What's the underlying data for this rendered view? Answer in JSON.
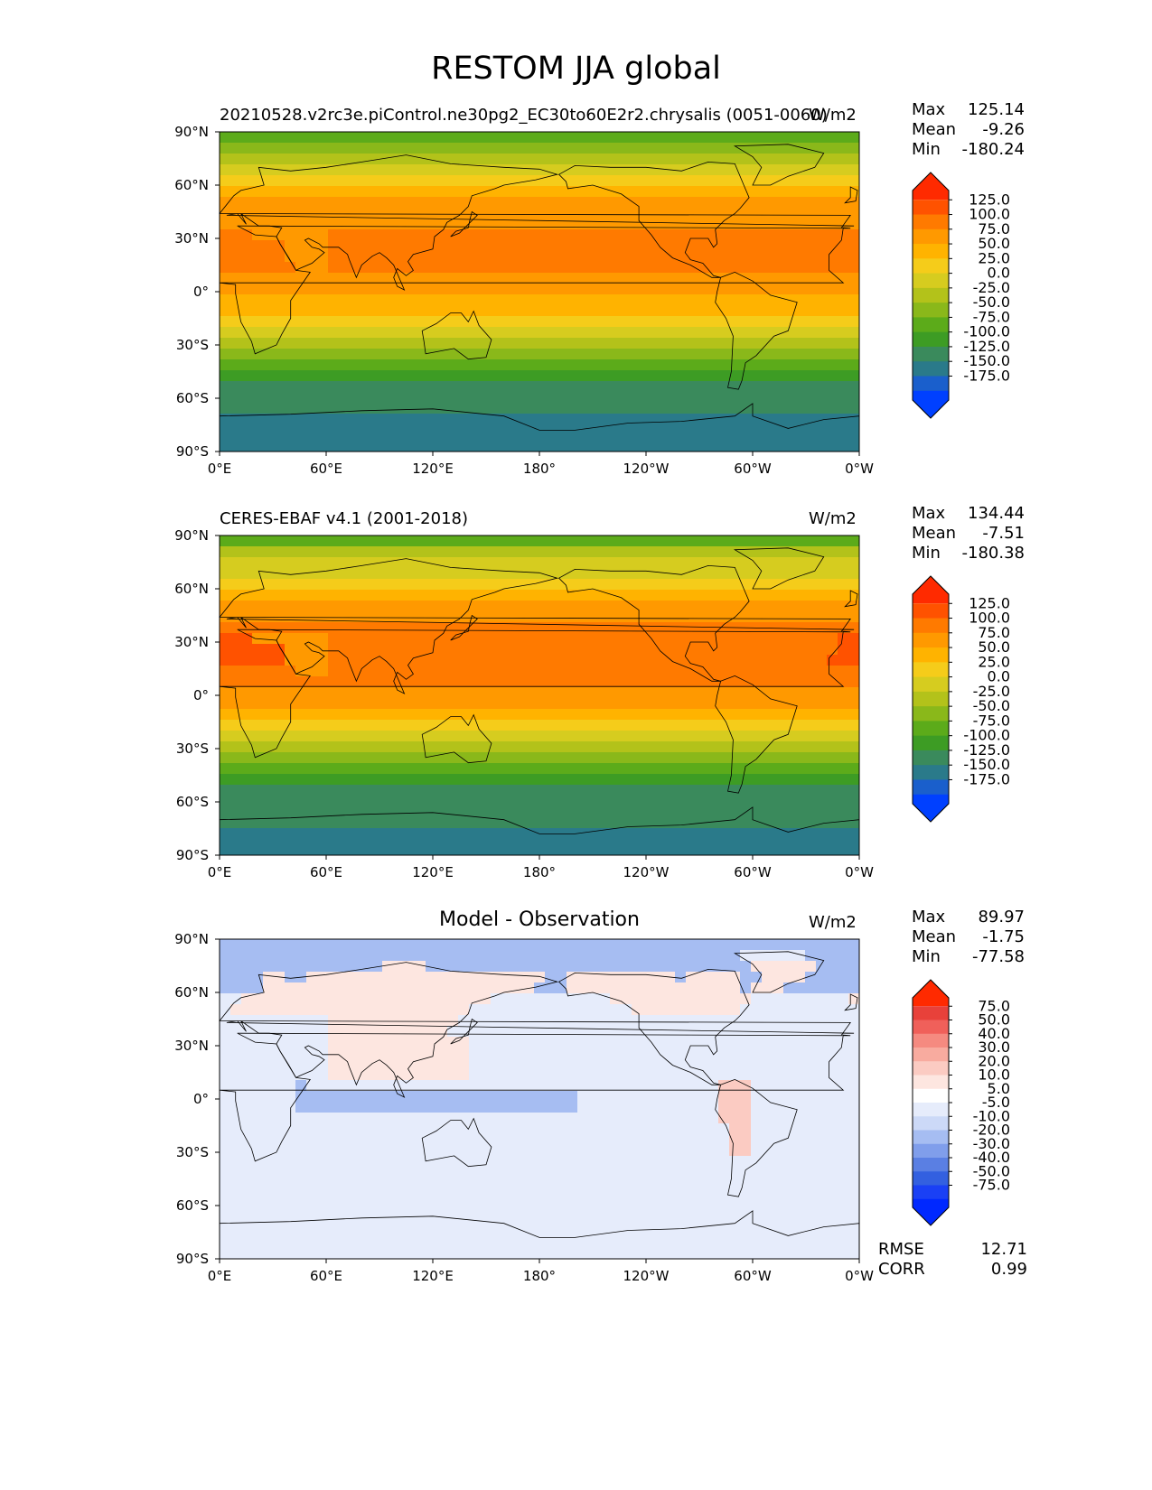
{
  "title": "RESTOM JJA global",
  "lat_ticks": [
    "90°N",
    "60°N",
    "30°N",
    "0°",
    "30°S",
    "60°S",
    "90°S"
  ],
  "lon_ticks": [
    "0°E",
    "60°E",
    "120°E",
    "180°",
    "120°W",
    "60°W",
    "0°W"
  ],
  "panels": [
    {
      "left_title": "20210528.v2rc3e.piControl.ne30pg2_EC30to60E2r2.chrysalis (0051-0060)",
      "center_title": "",
      "units": "W/m2",
      "stats": {
        "max_label": "Max",
        "max": "125.14",
        "mean_label": "Mean",
        "mean": "-9.26",
        "min_label": "Min",
        "min": "-180.24"
      },
      "colorbar": {
        "labels": [
          "125.0",
          "100.0",
          "75.0",
          "50.0",
          "25.0",
          "0.0",
          "-25.0",
          "-50.0",
          "-75.0",
          "-100.0",
          "-125.0",
          "-150.0",
          "-175.0"
        ],
        "colors": [
          "#ff2a00",
          "#ff5200",
          "#ff7a00",
          "#ff9900",
          "#ffb300",
          "#f5cc1a",
          "#d6cc1f",
          "#b3c21a",
          "#8ab81a",
          "#5cab1a",
          "#3d9c24",
          "#3a8a5c",
          "#2a7a8a",
          "#1a5fcc",
          "#0040ff"
        ],
        "ticks": [
          -175,
          -150,
          -125,
          -100,
          -75,
          -50,
          -25,
          0,
          25,
          50,
          75,
          100,
          125
        ]
      }
    },
    {
      "left_title": "CERES-EBAF v4.1 (2001-2018)",
      "center_title": "",
      "units": "W/m2",
      "stats": {
        "max_label": "Max",
        "max": "134.44",
        "mean_label": "Mean",
        "mean": "-7.51",
        "min_label": "Min",
        "min": "-180.38"
      },
      "colorbar": {
        "labels": [
          "125.0",
          "100.0",
          "75.0",
          "50.0",
          "25.0",
          "0.0",
          "-25.0",
          "-50.0",
          "-75.0",
          "-100.0",
          "-125.0",
          "-150.0",
          "-175.0"
        ],
        "colors": [
          "#ff2a00",
          "#ff5200",
          "#ff7a00",
          "#ff9900",
          "#ffb300",
          "#f5cc1a",
          "#d6cc1f",
          "#b3c21a",
          "#8ab81a",
          "#5cab1a",
          "#3d9c24",
          "#3a8a5c",
          "#2a7a8a",
          "#1a5fcc",
          "#0040ff"
        ],
        "ticks": [
          -175,
          -150,
          -125,
          -100,
          -75,
          -50,
          -25,
          0,
          25,
          50,
          75,
          100,
          125
        ]
      }
    },
    {
      "left_title": "",
      "center_title": "Model - Observation",
      "units": "W/m2",
      "stats": {
        "max_label": "Max",
        "max": "89.97",
        "mean_label": "Mean",
        "mean": "-1.75",
        "min_label": "Min",
        "min": "-77.58"
      },
      "colorbar": {
        "labels": [
          "75.0",
          "50.0",
          "40.0",
          "30.0",
          "20.0",
          "10.0",
          "5.0",
          "-5.0",
          "-10.0",
          "-20.0",
          "-30.0",
          "-40.0",
          "-50.0",
          "-75.0"
        ],
        "colors": [
          "#ff2a00",
          "#e8413a",
          "#f0605a",
          "#f58a80",
          "#f8ab9f",
          "#fbcbc2",
          "#fde6e0",
          "#ffffff",
          "#e6ecfb",
          "#ccd9f7",
          "#a6bdf2",
          "#809eeb",
          "#5a7fe3",
          "#3360e0",
          "#1a40f5",
          "#0028ff"
        ],
        "ticks": [
          -75,
          -50,
          -40,
          -30,
          -20,
          -10,
          -5,
          5,
          10,
          20,
          30,
          40,
          50,
          75
        ]
      },
      "metrics": {
        "rmse_label": "RMSE",
        "rmse": "12.71",
        "corr_label": "CORR",
        "corr": "0.99"
      }
    }
  ],
  "chart_data": {
    "type": "heatmap",
    "title": "RESTOM JJA global",
    "xlim": [
      0,
      360
    ],
    "ylim": [
      -90,
      90
    ],
    "projection": "PlateCarree",
    "coastlines": true,
    "fields": [
      {
        "name": "20210528.v2rc3e.piControl.ne30pg2_EC30to60E2r2.chrysalis (0051-0060)",
        "units": "W/m2",
        "max": 125.14,
        "mean": -9.26,
        "min": -180.24
      },
      {
        "name": "CERES-EBAF v4.1 (2001-2018)",
        "units": "W/m2",
        "max": 134.44,
        "mean": -7.51,
        "min": -180.38
      },
      {
        "name": "Model - Observation",
        "units": "W/m2",
        "max": 89.97,
        "mean": -1.75,
        "min": -77.58,
        "rmse": 12.71,
        "corr": 0.99
      }
    ]
  }
}
